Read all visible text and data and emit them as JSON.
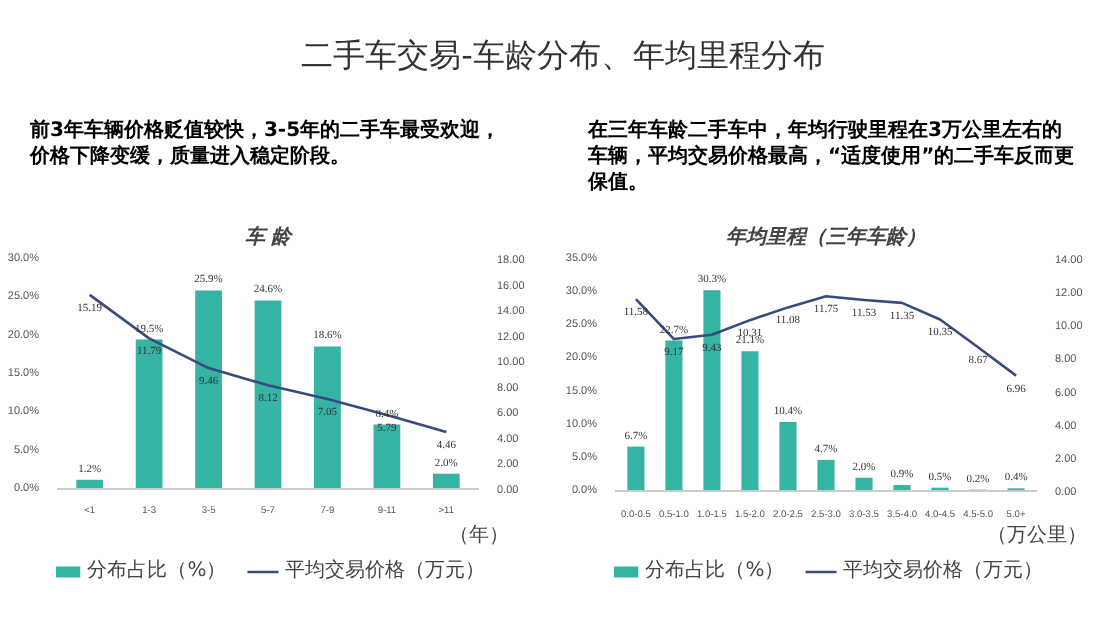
{
  "chart_data": [
    {
      "type": "bar",
      "title": "车 龄",
      "xlabel": "（年）",
      "annotations": [
        "二手车交易-车龄分布、年均里程分布",
        "前3年车辆价格贬值较快，3-5年的二手车最受欢迎，价格下降变缓，质量进入稳定阶段。"
      ],
      "categories": [
        "<1",
        "1-3",
        "3-5",
        "5-7",
        "7-9",
        "9-11",
        ">11"
      ],
      "series": [
        {
          "name": "分布占比（%）",
          "color": "#35b3a3",
          "values": [
            1.2,
            19.5,
            25.9,
            24.6,
            18.6,
            8.4,
            2.0
          ],
          "value_labels": [
            "1.2%",
            "19.5%",
            "25.9%",
            "24.6%",
            "18.6%",
            "8.4%",
            "2.0%"
          ]
        },
        {
          "name": "平均交易价格（万元）",
          "type": "line",
          "axis": "y2",
          "color": "#3b4a7d",
          "values": [
            15.19,
            11.79,
            9.46,
            8.12,
            7.05,
            5.79,
            4.46
          ],
          "value_labels": [
            "15.19",
            "11.79",
            "9.46",
            "8.12",
            "7.05",
            "5.79",
            "4.46"
          ]
        }
      ],
      "ylim": [
        0,
        30
      ],
      "yticks": [
        {
          "value": 0,
          "label": "0.0%"
        },
        {
          "value": 5,
          "label": "5.0%"
        },
        {
          "value": 10,
          "label": "10.0%"
        },
        {
          "value": 15,
          "label": "15.0%"
        },
        {
          "value": 20,
          "label": "20.0%"
        },
        {
          "value": 25,
          "label": "25.0%"
        },
        {
          "value": 30,
          "label": "30.0%"
        }
      ],
      "y2lim": [
        0,
        18
      ],
      "y2ticks": [
        {
          "value": 0,
          "label": "0.00"
        },
        {
          "value": 2,
          "label": "2.00"
        },
        {
          "value": 4,
          "label": "4.00"
        },
        {
          "value": 6,
          "label": "6.00"
        },
        {
          "value": 8,
          "label": "8.00"
        },
        {
          "value": 10,
          "label": "10.00"
        },
        {
          "value": 12,
          "label": "12.00"
        },
        {
          "value": 14,
          "label": "14.00"
        },
        {
          "value": 16,
          "label": "16.00"
        },
        {
          "value": 18,
          "label": "18.00"
        }
      ],
      "legend": "bottom"
    },
    {
      "title": "年均里程（三年车龄）",
      "xlabel": "（万公里）",
      "annotations": [
        "在三年车龄二手车中，年均行驶里程在3万公里左右的车辆，平均交易价格最高，“适度使用”的二手车反而更保值。"
      ],
      "categories": [
        "0.0-0.5",
        "0.5-1.0",
        "1.0-1.5",
        "1.5-2.0",
        "2.0-2.5",
        "2.5-3.0",
        "3.0-3.5",
        "3.5-4.0",
        "4.0-4.5",
        "4.5-5.0",
        "5.0+"
      ],
      "series": [
        {
          "name": "分布占比（%）",
          "color": "#35b3a3",
          "values": [
            6.7,
            22.7,
            30.3,
            21.1,
            10.4,
            4.7,
            2.0,
            0.9,
            0.5,
            0.2,
            0.4
          ],
          "value_labels": [
            "6.7%",
            "22.7%",
            "30.3%",
            "21.1%",
            "10.4%",
            "4.7%",
            "2.0%",
            "0.9%",
            "0.5%",
            "0.2%",
            "0.4%"
          ]
        },
        {
          "name": "平均交易价格（万元）",
          "type": "line",
          "axis": "y2",
          "color": "#3b4a7d",
          "values": [
            11.58,
            9.17,
            9.43,
            10.31,
            11.08,
            11.75,
            11.53,
            11.35,
            10.35,
            8.67,
            6.96
          ],
          "value_labels": [
            "11.58",
            "9.17",
            "9.43",
            "10.31",
            "11.08",
            "11.75",
            "11.53",
            "11.35",
            "10.35",
            "8.67",
            "6.96"
          ]
        }
      ],
      "type": "bar",
      "ylim": [
        0,
        35
      ],
      "yticks": [
        {
          "value": 0,
          "label": "0.0%"
        },
        {
          "value": 5,
          "label": "5.0%"
        },
        {
          "value": 10,
          "label": "10.0%"
        },
        {
          "value": 15,
          "label": "15.0%"
        },
        {
          "value": 20,
          "label": "20.0%"
        },
        {
          "value": 25,
          "label": "25.0%"
        },
        {
          "value": 30,
          "label": "30.0%"
        },
        {
          "value": 35,
          "label": "35.0%"
        }
      ],
      "y2lim": [
        0,
        14
      ],
      "y2ticks": [
        {
          "value": 0,
          "label": "0.00"
        },
        {
          "value": 2,
          "label": "2.00"
        },
        {
          "value": 4,
          "label": "4.00"
        },
        {
          "value": 6,
          "label": "6.00"
        },
        {
          "value": 8,
          "label": "8.00"
        },
        {
          "value": 10,
          "label": "10.00"
        },
        {
          "value": 12,
          "label": "12.00"
        },
        {
          "value": 14,
          "label": "14.00"
        }
      ],
      "legend": "bottom"
    }
  ]
}
